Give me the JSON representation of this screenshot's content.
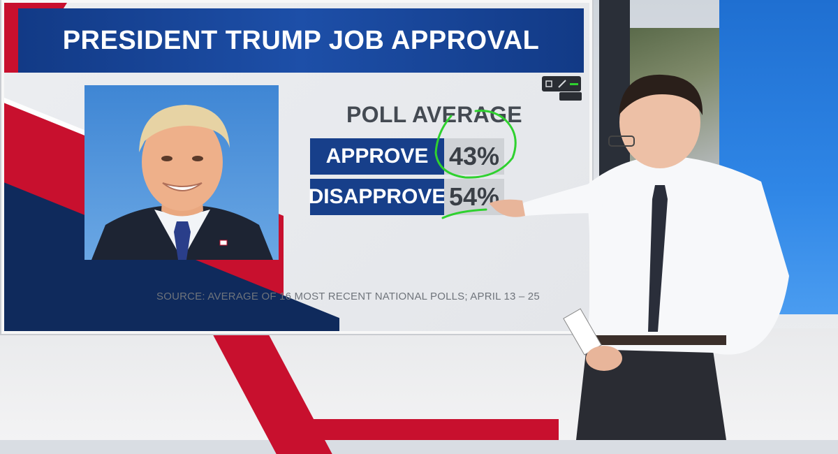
{
  "graphic": {
    "title": "PRESIDENT TRUMP JOB APPROVAL",
    "poll_heading": "POLL AVERAGE",
    "rows": [
      {
        "label": "APPROVE",
        "value": "43%"
      },
      {
        "label": "DISAPPROVE",
        "value": "54%"
      }
    ],
    "source": "SOURCE: AVERAGE OF 16 MOST RECENT NATIONAL POLLS; APRIL 13 – 25"
  },
  "colors": {
    "banner_blue": "#1d4fa8",
    "label_navy": "#173f8a",
    "accent_red": "#c8102e",
    "annotation_green": "#2fd12f"
  }
}
